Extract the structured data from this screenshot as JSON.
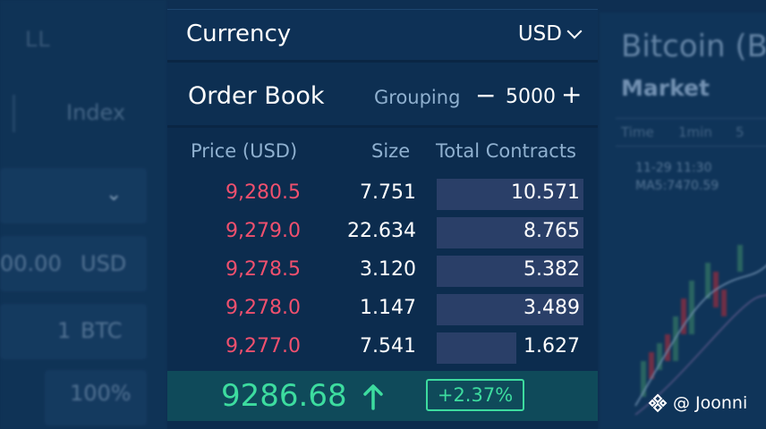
{
  "background_left": {
    "sell_label": "LL",
    "index_label": "Index",
    "amount_value": "00.00",
    "amount_unit": "USD",
    "btc_value": "1",
    "btc_unit": "BTC",
    "percent_value": "100%"
  },
  "background_right": {
    "title": "Bitcoin (B",
    "market_label": "Market",
    "tabs": [
      "Time",
      "1min",
      "5"
    ],
    "date_text": "11-29 11:30",
    "ma_text": "MA5:7470.59"
  },
  "currency": {
    "label": "Currency",
    "selected": "USD"
  },
  "order_book": {
    "title": "Order Book",
    "grouping_label": "Grouping",
    "grouping_minus": "−",
    "grouping_value": "5000",
    "grouping_plus": "+",
    "columns": {
      "price": "Price (USD)",
      "size": "Size",
      "total": "Total Contracts"
    },
    "rows": [
      {
        "price": "9,280.5",
        "size": "7.751",
        "total": "10.571",
        "depth": 1.0
      },
      {
        "price": "9,279.0",
        "size": "22.634",
        "total": "8.765",
        "depth": 1.0
      },
      {
        "price": "9,278.5",
        "size": "3.120",
        "total": "5.382",
        "depth": 1.0
      },
      {
        "price": "9,278.0",
        "size": "1.147",
        "total": "3.489",
        "depth": 1.0
      },
      {
        "price": "9,277.0",
        "size": "7.541",
        "total": "1.627",
        "depth": 0.54
      }
    ],
    "last_price": "9286.68",
    "change": "+2.37%"
  },
  "watermark": "@ Joonni",
  "colors": {
    "ask": "#f0506e",
    "bid": "#3ddc9f",
    "panel": "#0c2c4e",
    "depth_bar": "#2a3f68"
  }
}
